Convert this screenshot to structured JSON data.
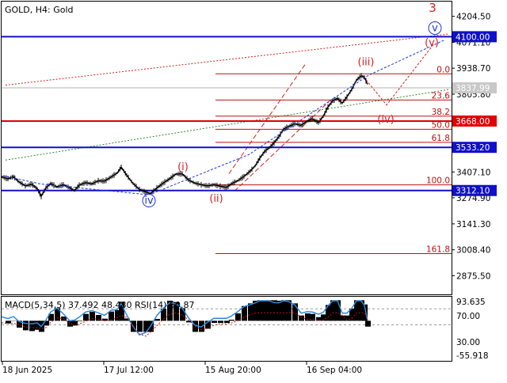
{
  "header": {
    "symbol_line": "GOLD, H4:  Gold",
    "indicator_line": "MACD(5,34,5) 37.492 48.480 RSI(14) 50.87"
  },
  "colors": {
    "background": "#ffffff",
    "frame": "#000000",
    "candles": "#000000",
    "wave_red": "#d62020",
    "wave_blue": "#1a36d8",
    "support_blue": "#1010c8",
    "support_red": "#e00000",
    "fib_line": "#c01010",
    "trend_red_dotted": "#d62020",
    "trend_green_dotted": "#2a8a2a",
    "macd_histogram": "#000000",
    "macd_signal": "#c01010",
    "rsi_line": "#2a8ae0",
    "current_price_line": "#b0b0b0"
  },
  "chart_data": [
    {
      "type": "line",
      "title": "GOLD, H4:  Gold",
      "xlabel": "",
      "ylabel": "",
      "ylim": [
        2780,
        4280
      ],
      "x_ticks": [
        "18 Jun 2025",
        "17 Jul 12:00",
        "15 Aug 20:00",
        "16 Sep 04:00"
      ],
      "y_ticks": [
        4204.5,
        4071.1,
        3938.7,
        3805.8,
        3407.1,
        3274.9,
        3141.3,
        3008.4,
        2875.5
      ],
      "y_ticks_text": [
        "4204.50",
        "4071.10",
        "3938.70",
        "3805.80",
        "3407.10",
        "3274.90",
        "3141.30",
        "3008.40",
        "2875.50"
      ],
      "price_series": [
        {
          "t": 0,
          "v": 3382
        },
        {
          "t": 8,
          "v": 3372
        },
        {
          "t": 15,
          "v": 3383
        },
        {
          "t": 22,
          "v": 3356
        },
        {
          "t": 30,
          "v": 3336
        },
        {
          "t": 38,
          "v": 3344
        },
        {
          "t": 45,
          "v": 3322
        },
        {
          "t": 50,
          "v": 3282
        },
        {
          "t": 56,
          "v": 3326
        },
        {
          "t": 62,
          "v": 3348
        },
        {
          "t": 70,
          "v": 3330
        },
        {
          "t": 78,
          "v": 3342
        },
        {
          "t": 86,
          "v": 3326
        },
        {
          "t": 92,
          "v": 3312
        },
        {
          "t": 98,
          "v": 3340
        },
        {
          "t": 106,
          "v": 3352
        },
        {
          "t": 114,
          "v": 3346
        },
        {
          "t": 122,
          "v": 3362
        },
        {
          "t": 130,
          "v": 3360
        },
        {
          "t": 138,
          "v": 3381
        },
        {
          "t": 146,
          "v": 3402
        },
        {
          "t": 151,
          "v": 3432
        },
        {
          "t": 158,
          "v": 3390
        },
        {
          "t": 166,
          "v": 3348
        },
        {
          "t": 174,
          "v": 3318
        },
        {
          "t": 182,
          "v": 3304
        },
        {
          "t": 188,
          "v": 3296
        },
        {
          "t": 196,
          "v": 3325
        },
        {
          "t": 204,
          "v": 3350
        },
        {
          "t": 212,
          "v": 3372
        },
        {
          "t": 220,
          "v": 3396
        },
        {
          "t": 228,
          "v": 3398
        },
        {
          "t": 236,
          "v": 3366
        },
        {
          "t": 244,
          "v": 3350
        },
        {
          "t": 252,
          "v": 3342
        },
        {
          "t": 260,
          "v": 3336
        },
        {
          "t": 268,
          "v": 3342
        },
        {
          "t": 276,
          "v": 3334
        },
        {
          "t": 284,
          "v": 3328
        },
        {
          "t": 290,
          "v": 3346
        },
        {
          "t": 298,
          "v": 3362
        },
        {
          "t": 306,
          "v": 3384
        },
        {
          "t": 314,
          "v": 3412
        },
        {
          "t": 320,
          "v": 3438
        },
        {
          "t": 326,
          "v": 3478
        },
        {
          "t": 332,
          "v": 3512
        },
        {
          "t": 338,
          "v": 3532
        },
        {
          "t": 344,
          "v": 3556
        },
        {
          "t": 350,
          "v": 3588
        },
        {
          "t": 356,
          "v": 3626
        },
        {
          "t": 362,
          "v": 3640
        },
        {
          "t": 370,
          "v": 3654
        },
        {
          "t": 378,
          "v": 3646
        },
        {
          "t": 386,
          "v": 3668
        },
        {
          "t": 392,
          "v": 3680
        },
        {
          "t": 400,
          "v": 3660
        },
        {
          "t": 406,
          "v": 3692
        },
        {
          "t": 412,
          "v": 3740
        },
        {
          "t": 418,
          "v": 3772
        },
        {
          "t": 424,
          "v": 3784
        },
        {
          "t": 430,
          "v": 3760
        },
        {
          "t": 436,
          "v": 3792
        },
        {
          "t": 442,
          "v": 3830
        },
        {
          "t": 448,
          "v": 3878
        },
        {
          "t": 454,
          "v": 3900
        },
        {
          "t": 458,
          "v": 3892
        },
        {
          "t": 462,
          "v": 3856
        }
      ],
      "price_range_x": [
        0,
        463
      ],
      "current_price": 3837.99,
      "current_price_text": "3837.99",
      "horizontal_levels": [
        {
          "value": 4100.0,
          "label": "4100.00",
          "color": "blue"
        },
        {
          "value": 3668.0,
          "label": "3668.00",
          "color": "red"
        },
        {
          "value": 3533.2,
          "label": "3533.20",
          "color": "blue"
        },
        {
          "value": 3312.1,
          "label": "3312.10",
          "color": "blue"
        }
      ],
      "fibonacci_levels": [
        {
          "label": "0.0",
          "value": 3910
        },
        {
          "label": "23.6",
          "value": 3776
        },
        {
          "label": "38.2",
          "value": 3693
        },
        {
          "label": "50.0",
          "value": 3626
        },
        {
          "label": "61.8",
          "value": 3559
        },
        {
          "label": "100.0",
          "value": 3341
        },
        {
          "label": "161.8",
          "value": 2989
        }
      ],
      "wave_labels": [
        {
          "text": "3",
          "t": 544,
          "v": 4228,
          "color": "red"
        },
        {
          "text": "v",
          "t": 547,
          "v": 4128,
          "color": "blue",
          "circled": true
        },
        {
          "text": "(v)",
          "t": 543,
          "v": 4053,
          "color": "red"
        },
        {
          "text": "(iii)",
          "t": 460,
          "v": 3953,
          "color": "red"
        },
        {
          "text": "(iv)",
          "t": 485,
          "v": 3660,
          "color": "red"
        },
        {
          "text": "(i)",
          "t": 229,
          "v": 3417,
          "color": "red"
        },
        {
          "text": "(ii)",
          "t": 271,
          "v": 3254,
          "color": "red"
        },
        {
          "text": "iv",
          "t": 186,
          "v": 3244,
          "color": "blue",
          "circled": true
        }
      ],
      "wave_paths": {
        "blue_dotted_projection": [
          {
            "t": 2,
            "v": 3388
          },
          {
            "t": 50,
            "v": 3345
          },
          {
            "t": 186,
            "v": 3290
          },
          {
            "t": 312,
            "v": 3496
          },
          {
            "t": 463,
            "v": 3902
          },
          {
            "t": 560,
            "v": 4085
          }
        ],
        "red_dotted_projection": [
          {
            "t": 460,
            "v": 3880
          },
          {
            "t": 486,
            "v": 3750
          },
          {
            "t": 545,
            "v": 4060
          }
        ]
      },
      "trend_lines": {
        "red_dotted_upper": [
          {
            "t": 5,
            "v": 3852
          },
          {
            "t": 565,
            "v": 4114
          }
        ],
        "green_dotted": [
          {
            "t": 5,
            "v": 3468
          },
          {
            "t": 565,
            "v": 3830
          }
        ],
        "red_dashed_channel": [
          {
            "points": [
              {
                "t": 287,
                "v": 3398
              },
              {
                "t": 383,
                "v": 3957
              }
            ]
          },
          {
            "points": [
              {
                "t": 294,
                "v": 3309
              },
              {
                "t": 418,
                "v": 3786
              }
            ]
          }
        ]
      }
    },
    {
      "type": "line",
      "title": "MACD(5,34,5) 37.492 48.480 RSI(14) 50.87",
      "ylim": [
        -60,
        100
      ],
      "y_ticks": [
        93.635,
        70.0,
        30.0,
        -55.918
      ],
      "y_ticks_text": [
        "93.635",
        "70.00",
        "30.00",
        "-55.918"
      ],
      "macd_value": 37.492,
      "signal_value": 48.48,
      "rsi_value": 50.87
    }
  ]
}
